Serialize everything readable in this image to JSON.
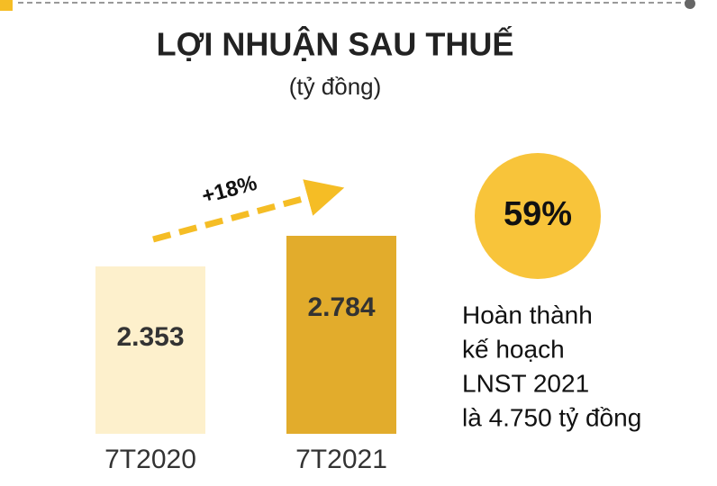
{
  "chart_data": {
    "type": "bar",
    "title": "LỢI NHUẬN SAU THUẾ",
    "subtitle": "(tỷ đồng)",
    "categories": [
      "7T2020",
      "7T2021"
    ],
    "values": [
      2353,
      2784
    ],
    "value_labels": [
      "2.353",
      "2.784"
    ],
    "colors": [
      "#fdf0cc",
      "#e2ac2c"
    ],
    "growth_label": "+18%",
    "highlight": {
      "text": "59%",
      "color": "#f8c43a"
    },
    "note": [
      "Hoàn thành",
      "kế hoạch",
      "LNST 2021",
      "là 4.750 tỷ đồng"
    ]
  }
}
